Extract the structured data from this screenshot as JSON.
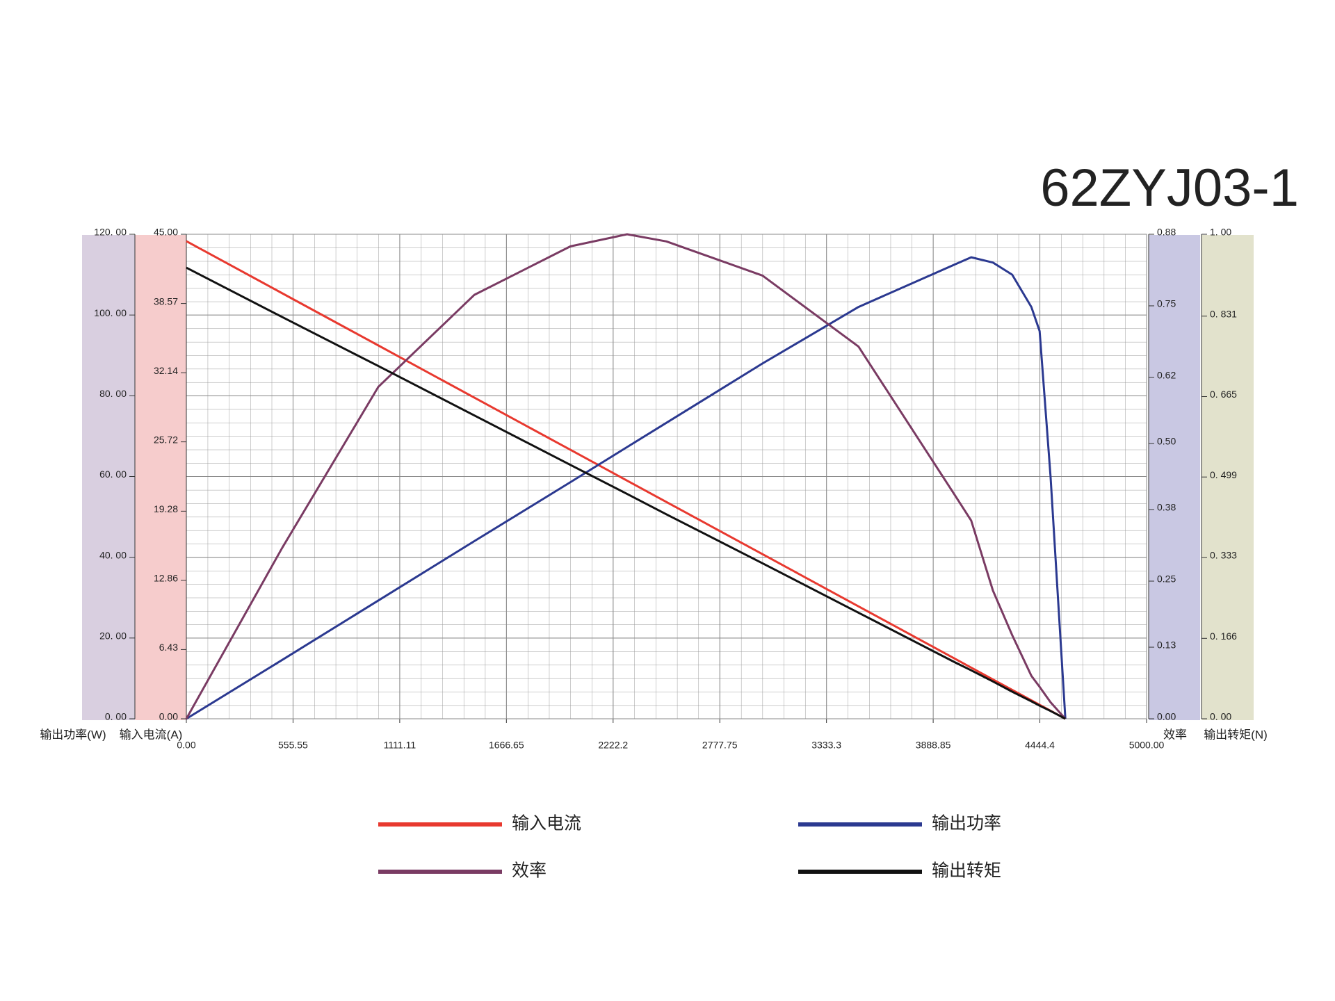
{
  "chart_data": {
    "type": "line",
    "title": "62ZYJ03-1",
    "x": [
      0,
      500,
      1000,
      1500,
      2000,
      2295,
      2500,
      3000,
      3500,
      4000,
      4087,
      4200,
      4300,
      4400,
      4443,
      4500,
      4577
    ],
    "xlim": [
      0,
      5000
    ],
    "xticks": [
      {
        "value": 0,
        "label": "0.00"
      },
      555.55,
      1111.11,
      1666.65,
      2222.2,
      2777.75,
      3333.3,
      3888.85,
      4444.4,
      {
        "value": 5000,
        "label": "5000.00"
      }
    ],
    "ylabel": "输出功率(W)",
    "ylim": [
      0,
      120
    ],
    "yticks": [
      {
        "value": 0,
        "label": "0. 00"
      },
      {
        "value": 20,
        "label": "20. 00"
      },
      {
        "value": 40,
        "label": "40. 00"
      },
      {
        "value": 60,
        "label": "60. 00"
      },
      {
        "value": 80,
        "label": "80. 00"
      },
      {
        "value": 100,
        "label": "100. 00"
      },
      {
        "value": 120,
        "label": "120. 00"
      }
    ],
    "y2label": "输入电流(A)",
    "y2lim": [
      0,
      45
    ],
    "y2ticks": [
      {
        "value": 0,
        "label": "0.00"
      },
      6.43,
      12.86,
      19.28,
      25.72,
      32.14,
      38.57,
      {
        "value": 45,
        "label": "45.00"
      }
    ],
    "y3label": "效率",
    "y3lim": [
      0,
      0.88
    ],
    "y3ticks": [
      {
        "value": 0,
        "label": "0.00"
      },
      0.13,
      0.25,
      0.38,
      {
        "value": 0.5,
        "label": "0.50"
      },
      0.62,
      0.75,
      0.88
    ],
    "y4label": "输出转矩(N)",
    "y4lim": [
      0,
      1
    ],
    "y4ticks": [
      {
        "value": 0,
        "label": "0. 00"
      },
      {
        "value": 0.166,
        "label": "0. 166"
      },
      {
        "value": 0.333,
        "label": "0. 333"
      },
      {
        "value": 0.499,
        "label": "0. 499"
      },
      {
        "value": 0.665,
        "label": "0. 665"
      },
      {
        "value": 0.831,
        "label": "0. 831"
      },
      {
        "value": 1,
        "label": "1. 00"
      }
    ],
    "grid": true,
    "series": [
      {
        "name": "输入电流",
        "color": "#e8392f",
        "axis": "y2",
        "values": [
          44.36,
          39.51,
          34.67,
          29.82,
          24.98,
          22.12,
          20.13,
          15.29,
          10.44,
          5.6,
          4.75,
          3.65,
          2.68,
          1.72,
          1.3,
          0.75,
          0
        ]
      },
      {
        "name": "输出功率",
        "color": "#2b3990",
        "axis": "y",
        "values": [
          0,
          14.6,
          29.3,
          44,
          58.6,
          67.3,
          73.3,
          88,
          102,
          112.5,
          114.3,
          113,
          110,
          102,
          96,
          60,
          0
        ]
      },
      {
        "name": "效率",
        "color": "#7a3b63",
        "axis": "y3",
        "values": [
          0,
          0.311,
          0.603,
          0.77,
          0.858,
          0.88,
          0.867,
          0.805,
          0.676,
          0.407,
          0.36,
          0.233,
          0.152,
          0.078,
          0.058,
          0.03,
          0
        ]
      },
      {
        "name": "输出转矩",
        "color": "#111111",
        "axis": "y4",
        "values": [
          0.931,
          0.829,
          0.728,
          0.626,
          0.524,
          0.464,
          0.422,
          0.321,
          0.219,
          0.117,
          0.1,
          0.077,
          0.056,
          0.036,
          0.027,
          0.016,
          0
        ]
      }
    ]
  }
}
